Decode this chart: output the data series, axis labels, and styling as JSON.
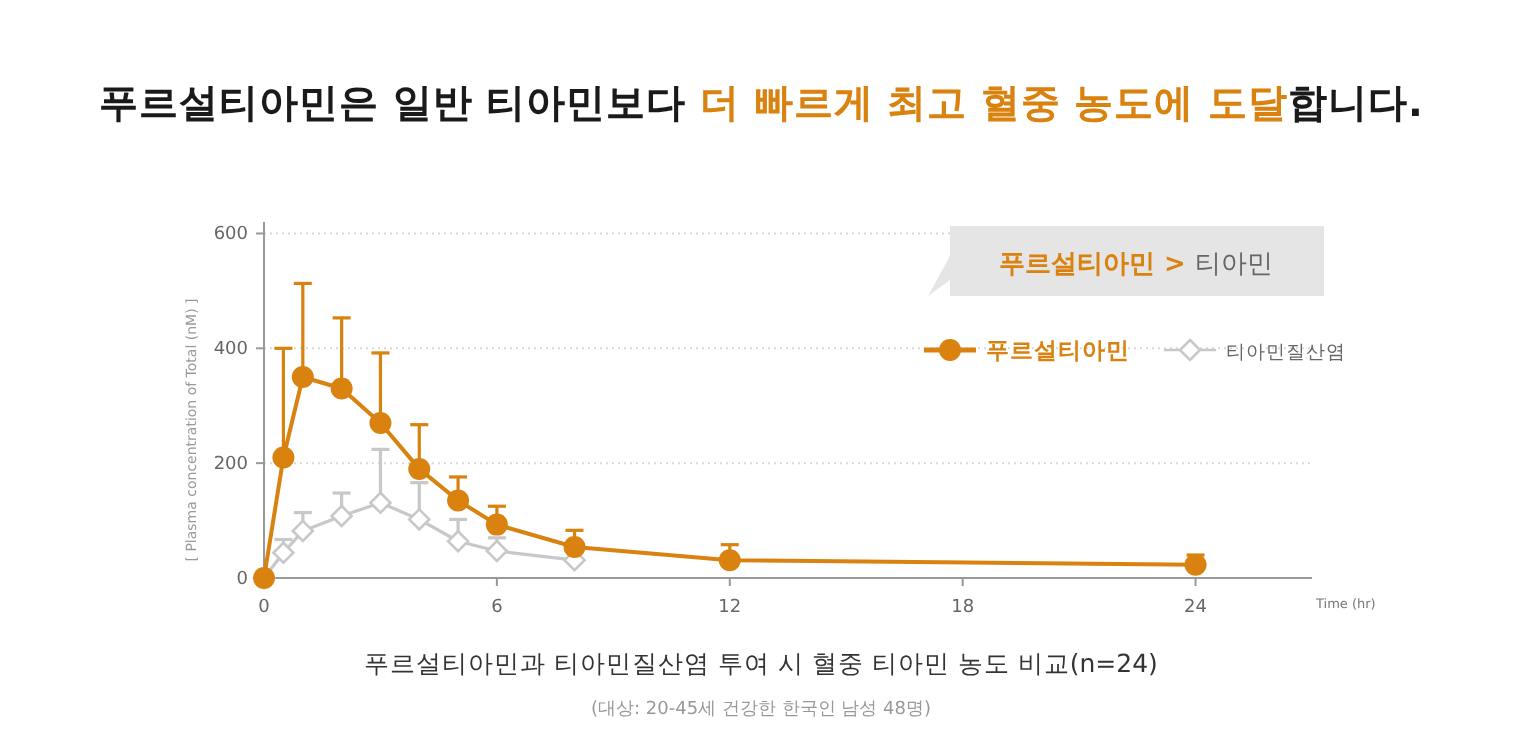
{
  "chart_data": {
    "type": "line",
    "title": "푸르설티아민은 일반 티아민보다 **더 빠르게 최고 혈중 농도에 도달**합니다.",
    "xlabel": "Time (hr)",
    "ylabel": "[ Plasma concentration of Total (nM) ]",
    "x": [
      0,
      0.5,
      1,
      2,
      3,
      4,
      5,
      6,
      8,
      12,
      24
    ],
    "series": [
      {
        "name": "푸르설티아민",
        "color": "#d9820f",
        "marker": "circle",
        "values": [
          0,
          210,
          350,
          330,
          270,
          190,
          135,
          93,
          54,
          31,
          23
        ],
        "errors": [
          null,
          [
            210,
            400
          ],
          [
            350,
            513
          ],
          [
            330,
            453
          ],
          [
            270,
            392
          ],
          [
            190,
            267
          ],
          [
            135,
            176
          ],
          [
            93,
            125
          ],
          [
            54,
            83
          ],
          [
            31,
            58
          ],
          [
            23,
            40
          ]
        ]
      },
      {
        "name": "티아민질산염",
        "color": "#c8c8c8",
        "marker": "diamond",
        "values": [
          0,
          44,
          82,
          108,
          131,
          102,
          64,
          47,
          31,
          null,
          null
        ],
        "errors": [
          null,
          [
            44,
            67
          ],
          [
            82,
            114
          ],
          [
            108,
            148
          ],
          [
            131,
            224
          ],
          [
            102,
            166
          ],
          [
            64,
            102
          ],
          [
            47,
            70
          ],
          null,
          null,
          null
        ]
      }
    ],
    "xlim": [
      0,
      27
    ],
    "ylim": [
      0,
      620
    ],
    "xticks": [
      0,
      6,
      12,
      18,
      24
    ],
    "yticks": [
      0,
      200,
      400,
      600
    ],
    "grid": "y",
    "legend": "top right",
    "annotations": [
      "푸르설티아민 >",
      "티아민",
      "푸르설티아민과 티아민질산염 투여 시 혈중 티아민 농도 비교(n=24)",
      "(대상: 20-45세 건강한 한국인 남성 48명)"
    ]
  }
}
